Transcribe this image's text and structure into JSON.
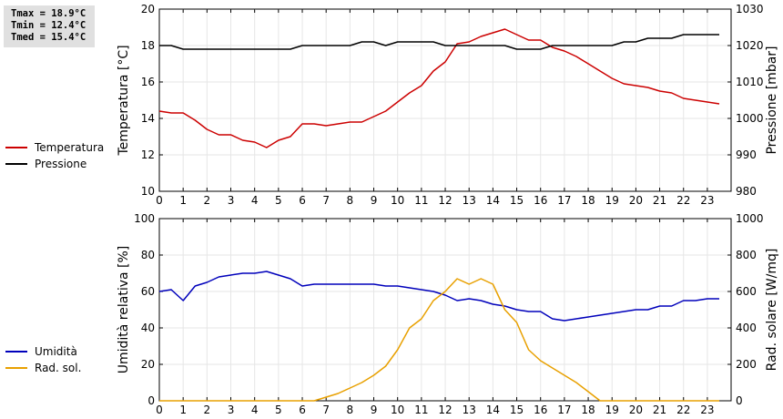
{
  "stats": {
    "tmax": "Tmax = 18.9°C",
    "tmin": "Tmin = 12.4°C",
    "tmed": "Tmed = 15.4°C"
  },
  "chart_data": [
    {
      "type": "line",
      "title": "",
      "xlabel": "",
      "ylabel": "Temperatura [°C]",
      "y2label": "Pressione [mbar]",
      "xlim": [
        0,
        24
      ],
      "ylim": [
        10,
        20
      ],
      "y2lim": [
        980,
        1030
      ],
      "xticks": [
        "0",
        "1",
        "2",
        "3",
        "4",
        "5",
        "6",
        "7",
        "8",
        "9",
        "10",
        "11",
        "12",
        "13",
        "14",
        "15",
        "16",
        "17",
        "18",
        "19",
        "20",
        "21",
        "22",
        "23"
      ],
      "yticks": [
        "10",
        "12",
        "14",
        "16",
        "18",
        "20"
      ],
      "y2ticks": [
        "980",
        "990",
        "1000",
        "1010",
        "1020",
        "1030"
      ],
      "grid": true,
      "legend_position": "left",
      "series": [
        {
          "name": "Temperatura",
          "axis": "left",
          "color": "#cc0000",
          "x": [
            0,
            0.5,
            1,
            1.5,
            2,
            2.5,
            3,
            3.5,
            4,
            4.5,
            5,
            5.5,
            6,
            6.5,
            7,
            7.5,
            8,
            8.5,
            9,
            9.5,
            10,
            10.5,
            11,
            11.5,
            12,
            12.5,
            13,
            13.5,
            14,
            14.5,
            15,
            15.5,
            16,
            16.5,
            17,
            17.5,
            18,
            18.5,
            19,
            19.5,
            20,
            20.5,
            21,
            21.5,
            22,
            22.5,
            23,
            23.5
          ],
          "values": [
            14.4,
            14.3,
            14.3,
            13.9,
            13.4,
            13.1,
            13.1,
            12.8,
            12.7,
            12.4,
            12.8,
            13.0,
            13.7,
            13.7,
            13.6,
            13.7,
            13.8,
            13.8,
            14.1,
            14.4,
            14.9,
            15.4,
            15.8,
            16.6,
            17.1,
            18.1,
            18.2,
            18.5,
            18.7,
            18.9,
            18.6,
            18.3,
            18.3,
            17.9,
            17.7,
            17.4,
            17.0,
            16.6,
            16.2,
            15.9,
            15.8,
            15.7,
            15.5,
            15.4,
            15.1,
            15.0,
            14.9,
            14.8
          ]
        },
        {
          "name": "Pressione",
          "axis": "right",
          "color": "#000000",
          "x": [
            0,
            0.5,
            1,
            1.5,
            2,
            2.5,
            3,
            3.5,
            4,
            4.5,
            5,
            5.5,
            6,
            6.5,
            7,
            7.5,
            8,
            8.5,
            9,
            9.5,
            10,
            10.5,
            11,
            11.5,
            12,
            12.5,
            13,
            13.5,
            14,
            14.5,
            15,
            15.5,
            16,
            16.5,
            17,
            17.5,
            18,
            18.5,
            19,
            19.5,
            20,
            20.5,
            21,
            21.5,
            22,
            22.5,
            23,
            23.5
          ],
          "values": [
            1020,
            1020,
            1019,
            1019,
            1019,
            1019,
            1019,
            1019,
            1019,
            1019,
            1019,
            1019,
            1020,
            1020,
            1020,
            1020,
            1020,
            1021,
            1021,
            1020,
            1021,
            1021,
            1021,
            1021,
            1020,
            1020,
            1020,
            1020,
            1020,
            1020,
            1019,
            1019,
            1019,
            1020,
            1020,
            1020,
            1020,
            1020,
            1020,
            1021,
            1021,
            1022,
            1022,
            1022,
            1023,
            1023,
            1023,
            1023
          ]
        }
      ]
    },
    {
      "type": "line",
      "title": "",
      "xlabel": "",
      "ylabel": "Umidità relativa [%]",
      "y2label": "Rad. solare [W/mq]",
      "xlim": [
        0,
        24
      ],
      "ylim": [
        0,
        100
      ],
      "y2lim": [
        0,
        1000
      ],
      "xticks": [
        "0",
        "1",
        "2",
        "3",
        "4",
        "5",
        "6",
        "7",
        "8",
        "9",
        "10",
        "11",
        "12",
        "13",
        "14",
        "15",
        "16",
        "17",
        "18",
        "19",
        "20",
        "21",
        "22",
        "23"
      ],
      "yticks": [
        "0",
        "20",
        "40",
        "60",
        "80",
        "100"
      ],
      "y2ticks": [
        "0",
        "200",
        "400",
        "600",
        "800",
        "1000"
      ],
      "grid": true,
      "legend_position": "left",
      "series": [
        {
          "name": "Umidità",
          "axis": "left",
          "color": "#0000bb",
          "x": [
            0,
            0.5,
            1,
            1.5,
            2,
            2.5,
            3,
            3.5,
            4,
            4.5,
            5,
            5.5,
            6,
            6.5,
            7,
            7.5,
            8,
            8.5,
            9,
            9.5,
            10,
            10.5,
            11,
            11.5,
            12,
            12.5,
            13,
            13.5,
            14,
            14.5,
            15,
            15.5,
            16,
            16.5,
            17,
            17.5,
            18,
            18.5,
            19,
            19.5,
            20,
            20.5,
            21,
            21.5,
            22,
            22.5,
            23,
            23.5
          ],
          "values": [
            60,
            61,
            55,
            63,
            65,
            68,
            69,
            70,
            70,
            71,
            69,
            67,
            63,
            64,
            64,
            64,
            64,
            64,
            64,
            63,
            63,
            62,
            61,
            60,
            58,
            55,
            56,
            55,
            53,
            52,
            50,
            49,
            49,
            45,
            44,
            45,
            46,
            47,
            48,
            49,
            50,
            50,
            52,
            52,
            55,
            55,
            56,
            56
          ]
        },
        {
          "name": "Rad. sol.",
          "axis": "right",
          "color": "#e8a000",
          "x": [
            0,
            0.5,
            1,
            1.5,
            2,
            2.5,
            3,
            3.5,
            4,
            4.5,
            5,
            5.5,
            6,
            6.5,
            7,
            7.5,
            8,
            8.5,
            9,
            9.5,
            10,
            10.5,
            11,
            11.5,
            12,
            12.5,
            13,
            13.5,
            14,
            14.5,
            15,
            15.5,
            16,
            16.5,
            17,
            17.5,
            18,
            18.5,
            19,
            19.5,
            20,
            20.5,
            21,
            21.5,
            22,
            22.5,
            23,
            23.5
          ],
          "values": [
            0,
            0,
            0,
            0,
            0,
            0,
            0,
            0,
            0,
            0,
            0,
            0,
            0,
            0,
            20,
            40,
            70,
            100,
            140,
            190,
            280,
            400,
            450,
            550,
            600,
            670,
            640,
            670,
            640,
            500,
            430,
            280,
            220,
            180,
            140,
            100,
            50,
            0,
            0,
            0,
            0,
            0,
            0,
            0,
            0,
            0,
            0,
            0
          ]
        }
      ]
    }
  ]
}
